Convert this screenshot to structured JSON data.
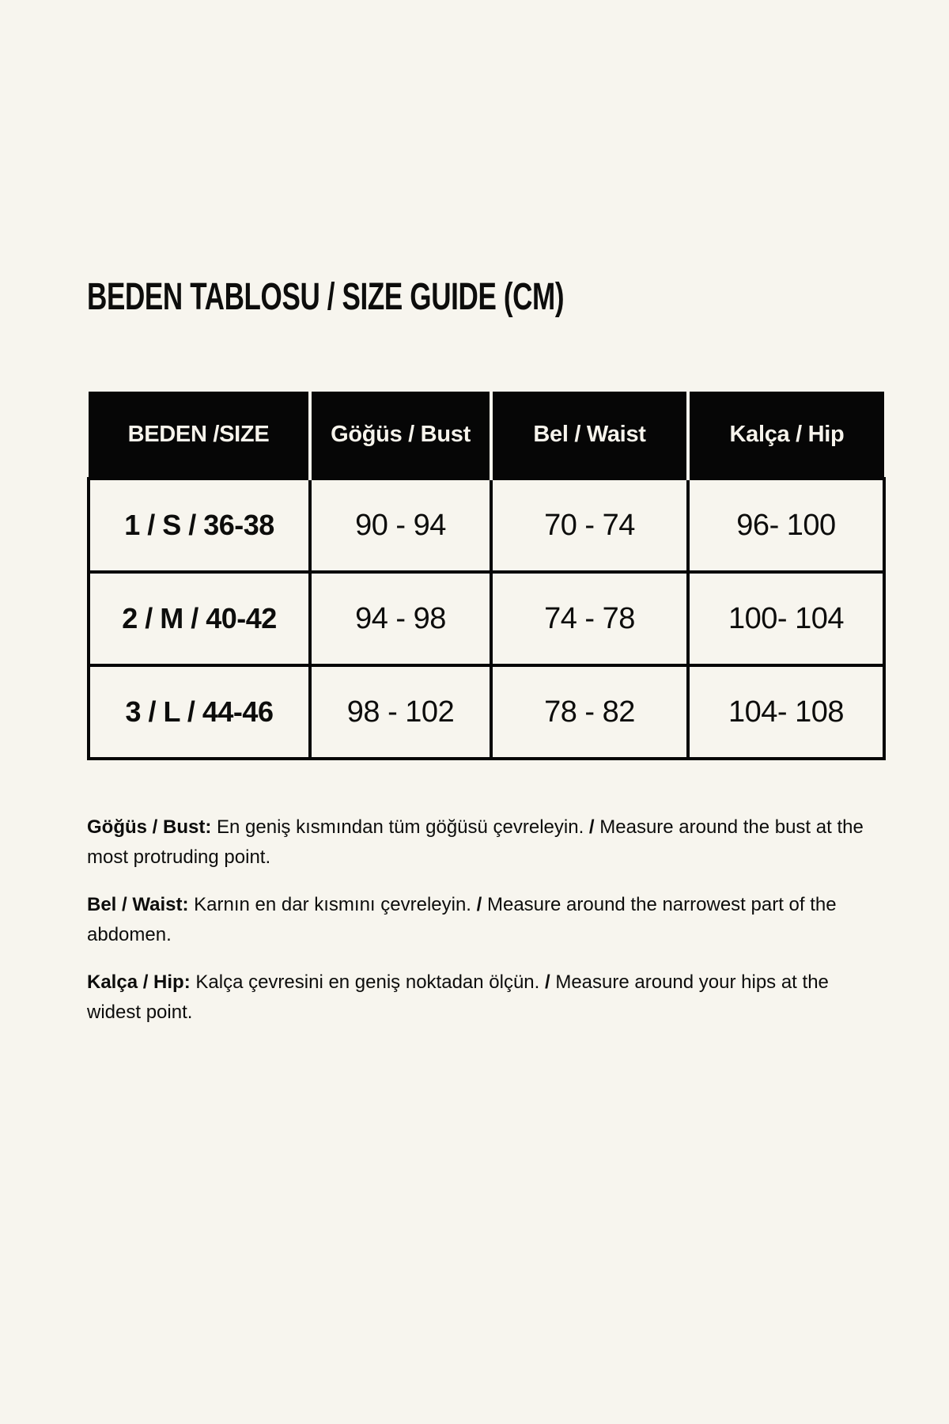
{
  "colors": {
    "background": "#f7f5ee",
    "ink": "#0d0d0c",
    "table_header_bg": "#060606",
    "table_header_text": "#f7f4ec"
  },
  "title": "BEDEN TABLOSU / SIZE GUIDE (CM)",
  "size_table": {
    "columns": [
      "BEDEN /SIZE",
      "Göğüs / Bust",
      "Bel / Waist",
      "Kalça / Hip"
    ],
    "rows": [
      {
        "size": "1 / S / 36-38",
        "bust": "90 - 94",
        "waist": "70 - 74",
        "hip": "96- 100"
      },
      {
        "size": "2 / M / 40-42",
        "bust": "94 - 98",
        "waist": "74 - 78",
        "hip": "100- 104"
      },
      {
        "size": "3 / L / 44-46",
        "bust": "98 - 102",
        "waist": "78 - 82",
        "hip": "104- 108"
      }
    ]
  },
  "notes": [
    {
      "label": "Göğüs / Bust:",
      "tr": "En geniş kısmından tüm göğüsü çevreleyin.",
      "separator": "/",
      "en": "Measure around the bust at the most protruding point."
    },
    {
      "label": "Bel / Waist:",
      "tr": "Karnın en dar kısmını çevreleyin.",
      "separator": "/",
      "en": "Measure around the narrowest part of the abdomen."
    },
    {
      "label": "Kalça / Hip:",
      "tr": "Kalça çevresini en geniş noktadan ölçün.",
      "separator": "/",
      "en": "Measure around your hips at the widest point."
    }
  ]
}
